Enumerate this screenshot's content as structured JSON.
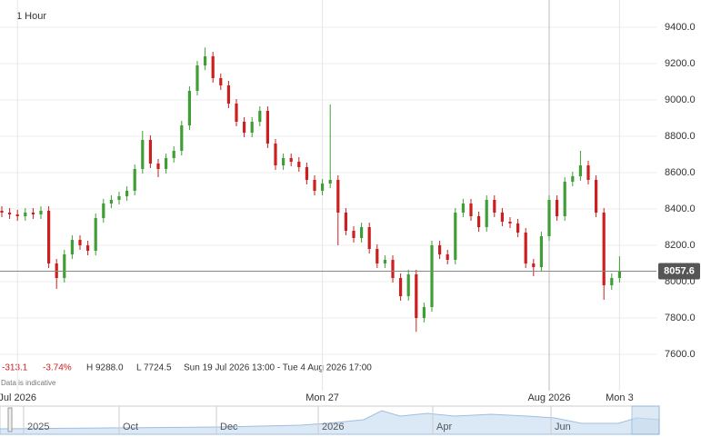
{
  "chart_data": {
    "type": "candlestick",
    "interval": "1 Hour",
    "categories": [
      null,
      null,
      "Jul 2026",
      null,
      null,
      null,
      null,
      null,
      null,
      null,
      null,
      null,
      null,
      null,
      null,
      null,
      null,
      null,
      null,
      null,
      null,
      null,
      null,
      null,
      null,
      null,
      null,
      null,
      null,
      null,
      null,
      null,
      null,
      null,
      null,
      null,
      null,
      null,
      null,
      null,
      null,
      "Mon 27",
      null,
      null,
      null,
      null,
      null,
      null,
      null,
      null,
      null,
      null,
      null,
      null,
      null,
      null,
      null,
      null,
      null,
      null,
      null,
      null,
      null,
      null,
      null,
      null,
      null,
      null,
      null,
      null,
      "Aug 2026",
      null,
      null,
      null,
      null,
      null,
      null,
      null,
      null,
      "Mon 3"
    ],
    "open": [
      8390,
      8380,
      8370,
      8360,
      8380,
      8370,
      8390,
      8100,
      8020,
      8150,
      8230,
      8200,
      8170,
      8350,
      8430,
      8450,
      8470,
      8500,
      8620,
      8780,
      8650,
      8620,
      8680,
      8720,
      8860,
      9050,
      9190,
      9240,
      9120,
      9080,
      8980,
      8880,
      8820,
      8880,
      8940,
      8760,
      8640,
      8680,
      8660,
      8630,
      8560,
      8500,
      8540,
      8560,
      8380,
      8280,
      8240,
      8300,
      8180,
      8100,
      8120,
      8020,
      7920,
      8040,
      7800,
      7860,
      8200,
      8150,
      8120,
      8380,
      8430,
      8360,
      8300,
      8450,
      8380,
      8330,
      8320,
      8270,
      8100,
      8080,
      8250,
      8450,
      8360,
      8550,
      8580,
      8640,
      8560,
      8380,
      7980,
      8020
    ],
    "high": [
      8415,
      8405,
      8395,
      8405,
      8405,
      8415,
      8415,
      8125,
      8175,
      8255,
      8255,
      8225,
      8375,
      8455,
      8475,
      8495,
      8525,
      8645,
      8830,
      8805,
      8675,
      8705,
      8745,
      8885,
      9075,
      9215,
      9288,
      9265,
      9145,
      9105,
      9005,
      8905,
      8905,
      8965,
      8965,
      8785,
      8705,
      8705,
      8685,
      8655,
      8585,
      8565,
      8975,
      8585,
      8405,
      8305,
      8325,
      8325,
      8205,
      8145,
      8145,
      8045,
      8065,
      8065,
      7885,
      8225,
      8225,
      8175,
      8405,
      8455,
      8455,
      8385,
      8475,
      8475,
      8405,
      8355,
      8345,
      8295,
      8125,
      8275,
      8475,
      8475,
      8575,
      8605,
      8720,
      8665,
      8585,
      8405,
      8045,
      8140
    ],
    "low": [
      8355,
      8345,
      8335,
      8335,
      8345,
      8345,
      8075,
      7960,
      7995,
      8125,
      8175,
      8145,
      8145,
      8325,
      8405,
      8425,
      8445,
      8475,
      8595,
      8625,
      8575,
      8595,
      8655,
      8695,
      8835,
      9025,
      9165,
      9095,
      9055,
      8955,
      8855,
      8795,
      8795,
      8855,
      8735,
      8615,
      8615,
      8635,
      8605,
      8535,
      8475,
      8475,
      8515,
      8200,
      8255,
      8215,
      8215,
      8155,
      8075,
      8075,
      7995,
      7895,
      7895,
      7724.5,
      7775,
      7835,
      8125,
      8095,
      8095,
      8355,
      8335,
      8275,
      8275,
      8355,
      8305,
      8295,
      8245,
      8075,
      8030,
      8055,
      8225,
      8335,
      8335,
      8525,
      8555,
      8535,
      8355,
      7900,
      7955,
      7995
    ],
    "close": [
      8380,
      8370,
      8360,
      8380,
      8370,
      8390,
      8100,
      8020,
      8150,
      8230,
      8200,
      8170,
      8350,
      8430,
      8450,
      8470,
      8500,
      8620,
      8780,
      8650,
      8620,
      8680,
      8720,
      8860,
      9050,
      9190,
      9240,
      9120,
      9080,
      8980,
      8880,
      8820,
      8880,
      8940,
      8760,
      8640,
      8680,
      8660,
      8630,
      8560,
      8500,
      8540,
      8560,
      8380,
      8280,
      8240,
      8300,
      8180,
      8100,
      8120,
      8020,
      7920,
      8040,
      7800,
      7860,
      8200,
      8150,
      8120,
      8380,
      8430,
      8360,
      8300,
      8450,
      8380,
      8330,
      8320,
      8270,
      8100,
      8080,
      8250,
      8450,
      8360,
      8550,
      8580,
      8640,
      8560,
      8380,
      7980,
      8020,
      8057.6
    ],
    "up_color": "#3f9e35",
    "down_color": "#cc1f1f",
    "ylim": [
      7500,
      9500
    ],
    "yticks": [
      {
        "value": 7600,
        "label": "7600.0"
      },
      {
        "value": 7800,
        "label": "7800.0"
      },
      {
        "value": 8000,
        "label": "8000.0"
      },
      {
        "value": 8200,
        "label": "8200.0"
      },
      {
        "value": 8400,
        "label": "8400.0"
      },
      {
        "value": 8600,
        "label": "8600.0"
      },
      {
        "value": 8800,
        "label": "8800.0"
      },
      {
        "value": 9000,
        "label": "9000.0"
      },
      {
        "value": 9200,
        "label": "9200.0"
      },
      {
        "value": 9400,
        "label": "9400.0"
      }
    ],
    "grid": true,
    "last": {
      "value": 8057.6,
      "label": "8057.6"
    },
    "stats": {
      "change": "-313.1",
      "change_pct": "-3.74%",
      "high": "H 9288.0",
      "low": "L 7724.5",
      "range": "Sun 19 Jul 2026 13:00 - Tue 4 Aug 2026 17:00"
    },
    "note": "Data is indicative",
    "navigator": [
      "2025",
      "Oct",
      "Dec",
      "2026",
      "Apr",
      "Jun"
    ]
  }
}
